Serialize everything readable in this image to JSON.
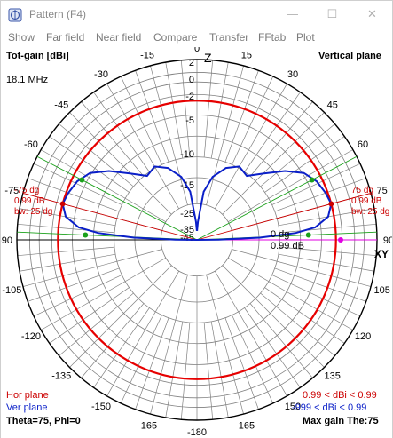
{
  "window": {
    "title": "Pattern    (F4)",
    "minimize_glyph": "—",
    "maximize_glyph": "☐",
    "close_glyph": "✕"
  },
  "menu": [
    "Show",
    "Far field",
    "Near field",
    "Compare",
    "Transfer",
    "FFtab",
    "Plot"
  ],
  "plot": {
    "gain_label": "Tot-gain [dBi]",
    "plane_label": "Vertical plane",
    "frequency": "18.1 MHz",
    "top_axis_label": "Z",
    "right_axis_label": "XY",
    "ring_labels": [
      "2",
      "0",
      "-2",
      "-5",
      "-10",
      "-15",
      "-25",
      "-35",
      "-45"
    ],
    "angle_labels": [
      "-15",
      "-30",
      "-45",
      "-60",
      "-75",
      "-90",
      "-105",
      "-120",
      "-135",
      "-150",
      "-165",
      "-180",
      "165",
      "150",
      "135",
      "120",
      "105",
      "90",
      "75",
      "60",
      "45",
      "30",
      "15",
      "0"
    ],
    "left_marker": [
      "-75 dg",
      "0.99 dB",
      "bw: 25 dg"
    ],
    "right_marker": [
      "75 dg",
      "0.99 dB",
      "bw: 25 dg"
    ],
    "center_marker": [
      "0 dg",
      "0.99 dB"
    ],
    "hor_plane_label": "Hor plane",
    "ver_plane_label": "Ver plane",
    "hor_range": "0.99 < dBi < 0.99",
    "ver_range": "-999 < dBi < 0.99",
    "theta_phi": "Theta=75, Phi=0",
    "max_gain": "Max gain The:75",
    "colors": {
      "hor_plane": "#e60000",
      "ver_plane": "#0a1fc8",
      "grid": "#808080",
      "marker_red": "#cc0000",
      "marker_green": "#1aa01a",
      "marker_magenta": "#e000e0"
    }
  }
}
